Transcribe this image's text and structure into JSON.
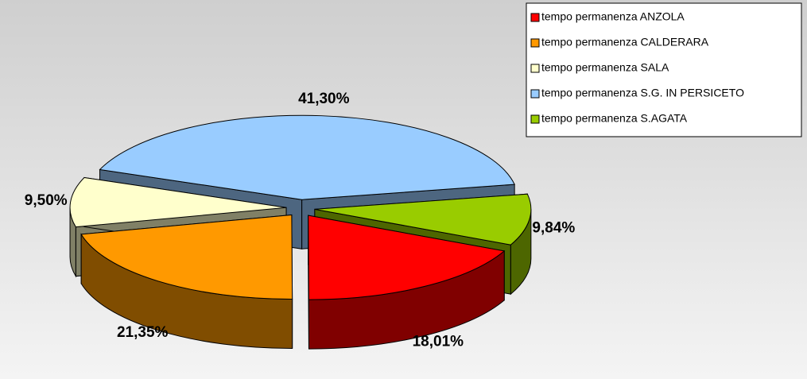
{
  "chart_data": {
    "type": "pie3d",
    "categories": [
      "tempo permanenza ANZOLA",
      "tempo permanenza CALDERARA",
      "tempo permanenza SALA",
      "tempo permanenza S.G. IN PERSICETO",
      "tempo permanenza S.AGATA"
    ],
    "values": [
      18.01,
      21.35,
      9.5,
      41.3,
      9.84
    ],
    "value_labels": [
      "18,01%",
      "21,35%",
      "9,50%",
      "41,30%",
      "9,84%"
    ],
    "colors": [
      "#ff0000",
      "#ff9900",
      "#ffffcc",
      "#99ccff",
      "#99cc00"
    ],
    "legend": "top-right"
  }
}
